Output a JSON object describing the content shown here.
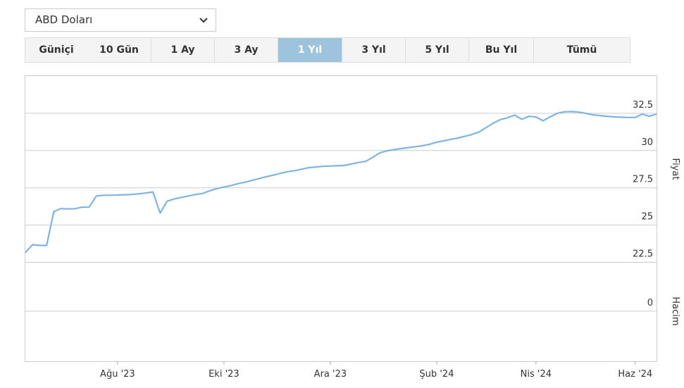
{
  "ui": {
    "dropdown": "ABD Doları",
    "tabs": [
      "Güniçi",
      "10 Gün",
      "1 Ay",
      "3 Ay",
      "1 Yıl",
      "3 Yıl",
      "5 Yıl",
      "Bu Yıl",
      "Tümü"
    ],
    "active_tab": 4
  },
  "chart_data": {
    "type": "line",
    "ylabel": "Fiyat",
    "y2label": "Hacim",
    "color": "#7fb4e2",
    "grid": true,
    "ylim": [
      21.2,
      35
    ],
    "yticks": [
      22.5,
      25,
      27.5,
      30,
      32.5
    ],
    "y2lim": [
      -1.7,
      1
    ],
    "y2ticks": [
      0
    ],
    "categories": [
      null,
      null,
      null,
      null,
      null,
      null,
      null,
      null,
      null,
      null,
      null,
      null,
      null,
      "Ağu '23",
      null,
      null,
      null,
      null,
      null,
      null,
      null,
      null,
      null,
      null,
      null,
      null,
      null,
      null,
      "Eki '23",
      null,
      null,
      null,
      null,
      null,
      null,
      null,
      null,
      null,
      null,
      null,
      null,
      null,
      null,
      "Ara '23",
      null,
      null,
      null,
      null,
      null,
      null,
      null,
      null,
      null,
      null,
      null,
      null,
      null,
      null,
      "Şub '24",
      null,
      null,
      null,
      null,
      null,
      null,
      null,
      null,
      null,
      null,
      null,
      null,
      null,
      "Nis '24",
      null,
      null,
      null,
      null,
      null,
      null,
      null,
      null,
      null,
      null,
      null,
      null,
      null,
      "Haz '24",
      null,
      null,
      null
    ],
    "values": [
      23.15,
      23.68,
      23.64,
      23.63,
      25.9,
      26.1,
      26.08,
      26.1,
      26.2,
      26.2,
      26.95,
      27.0,
      27.0,
      27.02,
      27.03,
      27.05,
      27.1,
      27.15,
      27.22,
      25.8,
      26.6,
      26.75,
      26.85,
      26.95,
      27.05,
      27.12,
      27.3,
      27.45,
      27.55,
      27.65,
      27.78,
      27.88,
      28.0,
      28.12,
      28.25,
      28.35,
      28.48,
      28.58,
      28.65,
      28.75,
      28.85,
      28.9,
      28.94,
      28.96,
      28.98,
      29.0,
      29.1,
      29.2,
      29.27,
      29.55,
      29.85,
      29.98,
      30.06,
      30.13,
      30.2,
      30.26,
      30.32,
      30.42,
      30.56,
      30.65,
      30.75,
      30.84,
      30.96,
      31.08,
      31.25,
      31.55,
      31.85,
      32.08,
      32.2,
      32.38,
      32.1,
      32.3,
      32.25,
      32.0,
      32.26,
      32.5,
      32.6,
      32.62,
      32.58,
      32.5,
      32.4,
      32.35,
      32.3,
      32.26,
      32.24,
      32.22,
      32.22,
      32.45,
      32.3,
      32.45
    ]
  }
}
